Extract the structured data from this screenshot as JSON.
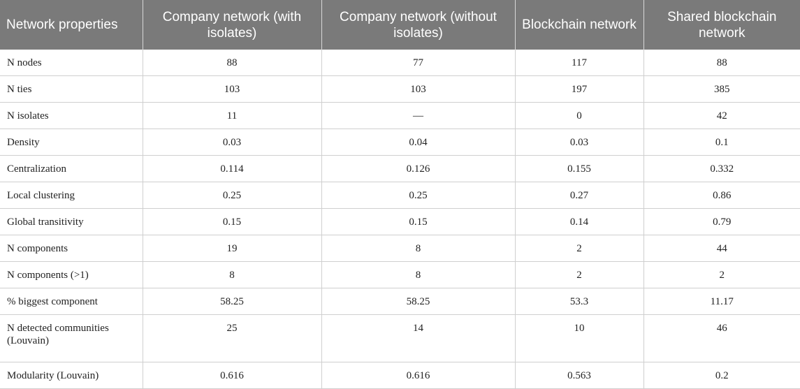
{
  "table": {
    "headers": [
      "Network properties",
      "Company network (with isolates)",
      "Company network (without isolates)",
      "Blockchain network",
      "Shared blockchain network"
    ],
    "rows": [
      {
        "label": "N nodes",
        "values": [
          "88",
          "77",
          "117",
          "88"
        ]
      },
      {
        "label": "N ties",
        "values": [
          "103",
          "103",
          "197",
          "385"
        ]
      },
      {
        "label": "N isolates",
        "values": [
          "11",
          "—",
          "0",
          "42"
        ]
      },
      {
        "label": "Density",
        "values": [
          "0.03",
          "0.04",
          "0.03",
          "0.1"
        ]
      },
      {
        "label": "Centralization",
        "values": [
          "0.114",
          "0.126",
          "0.155",
          "0.332"
        ]
      },
      {
        "label": "Local clustering",
        "values": [
          "0.25",
          "0.25",
          "0.27",
          "0.86"
        ]
      },
      {
        "label": "Global transitivity",
        "values": [
          "0.15",
          "0.15",
          "0.14",
          "0.79"
        ]
      },
      {
        "label": "N components",
        "values": [
          "19",
          "8",
          "2",
          "44"
        ]
      },
      {
        "label": "N components (>1)",
        "values": [
          "8",
          "8",
          "2",
          "2"
        ]
      },
      {
        "label": "% biggest component",
        "values": [
          "58.25",
          "58.25",
          "53.3",
          "11.17"
        ]
      },
      {
        "label": "N detected communities (Louvain)",
        "values": [
          "25",
          "14",
          "10",
          "46"
        ]
      },
      {
        "label": "Modularity (Louvain)",
        "values": [
          "0.616",
          "0.616",
          "0.563",
          "0.2"
        ]
      }
    ]
  }
}
